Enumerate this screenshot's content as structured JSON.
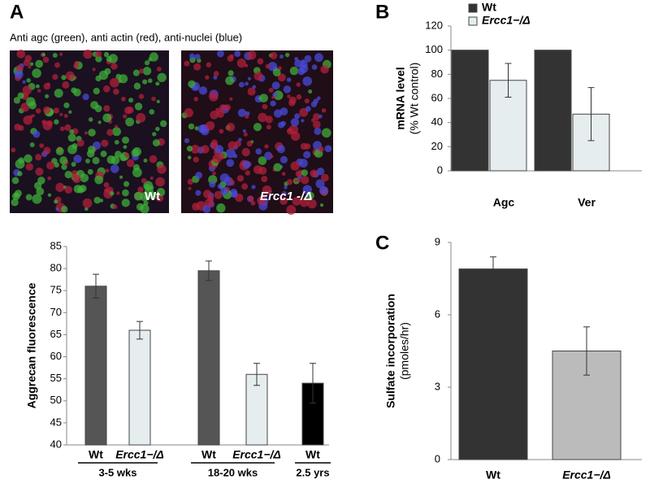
{
  "panel_labels": [
    "A",
    "B",
    "C"
  ],
  "images": {
    "caption": "Anti agc (green), anti actin (red), anti-nuclei (blue)",
    "labels": [
      "Wt",
      "Ercc1 -/Δ"
    ]
  },
  "chart_data": [
    {
      "type": "bar",
      "y_label": "Aggrecan fluorescence",
      "categories": [
        "Wt",
        "Ercc1−/Δ",
        "Wt",
        "Ercc1−/Δ",
        "Wt"
      ],
      "groups": [
        "3-5 wks",
        "18-20 wks",
        "2.5 yrs"
      ],
      "values": [
        76,
        66,
        79.5,
        56,
        54
      ],
      "errors": [
        2.7,
        2,
        2.2,
        2.5,
        4.5
      ],
      "colors": [
        "#555555",
        "#e6edef",
        "#555555",
        "#e6edef",
        "#000000"
      ],
      "ylim": [
        40,
        85
      ],
      "yticks": [
        40,
        45,
        50,
        55,
        60,
        65,
        70,
        75,
        80,
        85
      ]
    },
    {
      "type": "bar",
      "y_label": "mRNA level",
      "y_sublabel": "(% Wt control)",
      "categories": [
        "Agc",
        "Ver"
      ],
      "series": [
        {
          "name": "Wt",
          "color": "#333333",
          "values": [
            100,
            100
          ]
        },
        {
          "name": "Ercc1−/Δ",
          "color": "#e6edef",
          "values": [
            75,
            47
          ],
          "errors": [
            14,
            22
          ]
        }
      ],
      "legend": "top-left",
      "ylim": [
        0,
        120
      ],
      "yticks": [
        0,
        20,
        40,
        60,
        80,
        100,
        120
      ]
    },
    {
      "type": "bar",
      "y_label": "Sulfate incorporation",
      "y_sublabel": "(pmoles/hr)",
      "categories": [
        "Wt",
        "Ercc1−/Δ"
      ],
      "values": [
        7.9,
        4.5
      ],
      "errors": [
        0.5,
        1.0
      ],
      "colors": [
        "#333333",
        "#bbbbbb"
      ],
      "ylim": [
        0,
        9
      ],
      "yticks": [
        0,
        3,
        6,
        9
      ]
    }
  ]
}
